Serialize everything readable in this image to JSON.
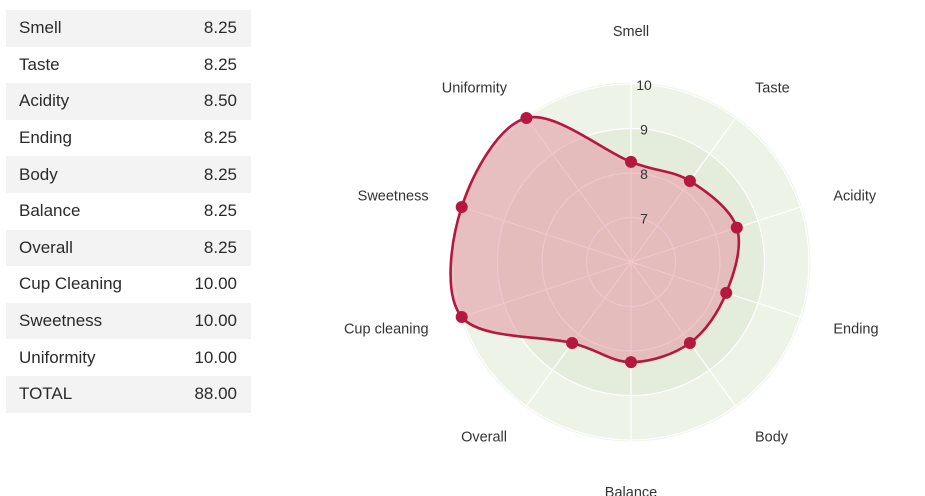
{
  "table": {
    "rows": [
      {
        "label": "Smell",
        "value": "8.25"
      },
      {
        "label": "Taste",
        "value": "8.25"
      },
      {
        "label": "Acidity",
        "value": "8.50"
      },
      {
        "label": "Ending",
        "value": "8.25"
      },
      {
        "label": "Body",
        "value": "8.25"
      },
      {
        "label": "Balance",
        "value": "8.25"
      },
      {
        "label": "Overall",
        "value": "8.25"
      },
      {
        "label": "Cup Cleaning",
        "value": "10.00"
      },
      {
        "label": "Sweetness",
        "value": "10.00"
      },
      {
        "label": "Uniformity",
        "value": "10.00"
      },
      {
        "label": "TOTAL",
        "value": "88.00"
      }
    ]
  },
  "chart_data": {
    "type": "radar",
    "categories": [
      "Smell",
      "Taste",
      "Acidity",
      "Ending",
      "Body",
      "Balance",
      "Overall",
      "Cup cleaning",
      "Sweetness",
      "Uniformity"
    ],
    "values": [
      8.25,
      8.25,
      8.5,
      8.25,
      8.25,
      8.25,
      8.25,
      10,
      10,
      10
    ],
    "radial_range": [
      6,
      10
    ],
    "radial_ticks": [
      "7",
      "8",
      "9",
      "10"
    ],
    "grid": true,
    "colors": {
      "series_line": "#b5173f",
      "series_fill": "#e38c9c",
      "background_outer": "#edf3e6",
      "background_inner": "#e4ecdb",
      "grid": "#ffffff"
    }
  }
}
